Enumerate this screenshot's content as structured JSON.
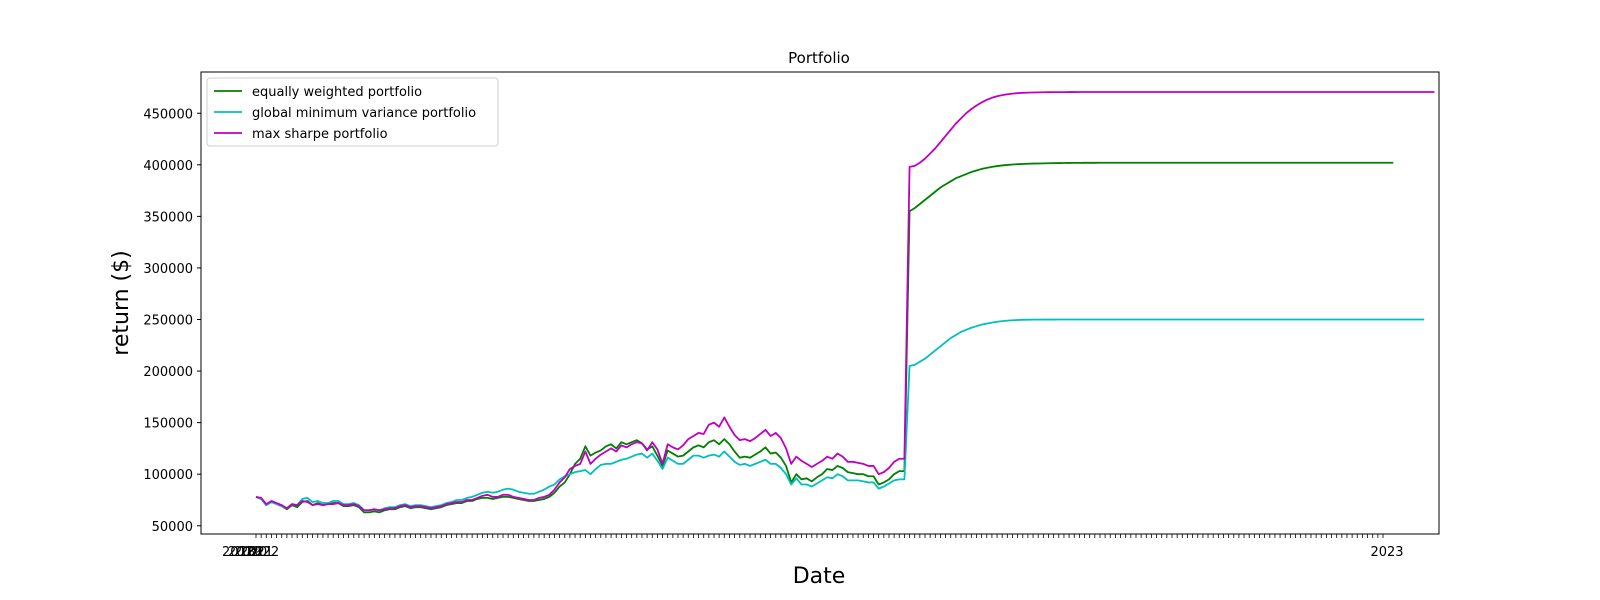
{
  "chart_data": {
    "type": "line",
    "title": "Portfolio",
    "xlabel": "Date",
    "ylabel": "return ($)",
    "ylim": [
      42000,
      490000
    ],
    "yticks": [
      50000,
      100000,
      150000,
      200000,
      250000,
      300000,
      350000,
      400000,
      450000
    ],
    "ytick_labels": [
      "50000",
      "100000",
      "150000",
      "200000",
      "250000",
      "300000",
      "350000",
      "400000",
      "450000"
    ],
    "x_tick_labels": [
      "2018",
      "2019",
      "2020",
      "2021",
      "2022",
      "2023"
    ],
    "grid": false,
    "legend": "top-left",
    "x_count": 220,
    "x_jump": 124,
    "series": [
      {
        "name": "equally weighted portfolio",
        "color": "#008000",
        "values": [
          78000,
          76000,
          70000,
          73000,
          71000,
          69000,
          66000,
          70000,
          68000,
          73000,
          74000,
          70000,
          72000,
          70000,
          71000,
          72000,
          72000,
          69000,
          69000,
          70000,
          68000,
          63000,
          63000,
          64000,
          63000,
          65000,
          66000,
          66000,
          68000,
          69000,
          67000,
          68000,
          68000,
          67000,
          66000,
          67000,
          68000,
          70000,
          71000,
          72000,
          72000,
          74000,
          74000,
          76000,
          77000,
          77000,
          76000,
          77000,
          78000,
          78000,
          77000,
          76000,
          75000,
          74000,
          74000,
          75000,
          76000,
          78000,
          82000,
          88000,
          92000,
          100000,
          110000,
          115000,
          127000,
          118000,
          121000,
          123000,
          127000,
          129000,
          125000,
          131000,
          129000,
          131000,
          133000,
          130000,
          124000,
          127000,
          118000,
          108000,
          123000,
          120000,
          117000,
          118000,
          122000,
          126000,
          128000,
          126000,
          131000,
          133000,
          129000,
          134000,
          129000,
          122000,
          116000,
          117000,
          116000,
          119000,
          122000,
          126000,
          120000,
          121000,
          116000,
          108000,
          92000,
          100000,
          95000,
          96000,
          93000,
          97000,
          100000,
          105000,
          104000,
          108000,
          106000,
          102000,
          101000,
          100000,
          100000,
          98000,
          98000,
          90000,
          92000,
          95000,
          100000,
          103000,
          103000,
          355000,
          358000,
          362000,
          366000,
          370000,
          374000,
          378000,
          381000,
          384000,
          387000,
          389000,
          391000,
          393000,
          394500,
          396000,
          397000,
          398000,
          398800,
          399400,
          399900,
          400300,
          400600,
          400800,
          401000,
          401200,
          401300,
          401400,
          401500,
          401600,
          401700,
          401750,
          401800,
          401850,
          401900,
          401920,
          401940,
          401960,
          401980,
          402000,
          402000,
          402000,
          402000,
          402000,
          402000,
          402000,
          402000,
          402000,
          402000,
          402000,
          402000,
          402000,
          402000,
          402000,
          402000,
          402000,
          402000,
          402000,
          402000,
          402000,
          402000,
          402000,
          402000,
          402000,
          402000,
          402000,
          402000,
          402000,
          402000,
          402000,
          402000,
          402000,
          402000,
          402000,
          402000,
          402000,
          402000,
          402000,
          402000,
          402000,
          402000,
          402000,
          402000,
          402000,
          402000,
          402000,
          402000,
          402000,
          402000,
          402000,
          402000,
          402000,
          402000,
          402000,
          402000,
          402000
        ]
      },
      {
        "name": "global minimum variance portfolio",
        "color": "#00bfbf",
        "values": [
          78000,
          76000,
          70000,
          73000,
          71000,
          69000,
          67000,
          71000,
          70000,
          76000,
          77000,
          73000,
          74000,
          72000,
          72000,
          74000,
          74000,
          71000,
          71000,
          72000,
          70000,
          65000,
          65000,
          66000,
          65000,
          67000,
          68000,
          68000,
          70000,
          71000,
          69000,
          70000,
          70000,
          69000,
          68000,
          69000,
          70000,
          72000,
          73000,
          75000,
          75000,
          77000,
          78000,
          80000,
          82000,
          83000,
          82000,
          83000,
          85000,
          86000,
          85000,
          83000,
          82000,
          81000,
          81000,
          83000,
          85000,
          88000,
          90000,
          95000,
          98000,
          100000,
          102000,
          103000,
          104000,
          100000,
          105000,
          109000,
          110000,
          110000,
          112000,
          114000,
          115000,
          117000,
          119000,
          120000,
          116000,
          120000,
          113000,
          105000,
          116000,
          113000,
          110000,
          110000,
          114000,
          118000,
          118000,
          116000,
          118000,
          119000,
          117000,
          122000,
          117000,
          112000,
          109000,
          110000,
          108000,
          110000,
          112000,
          114000,
          110000,
          110000,
          106000,
          100000,
          90000,
          96000,
          90000,
          90000,
          88000,
          91000,
          94000,
          97000,
          96000,
          100000,
          98000,
          94000,
          94000,
          94000,
          93000,
          92000,
          92000,
          86000,
          88000,
          91000,
          94000,
          95000,
          95000,
          205000,
          206000,
          209000,
          212000,
          216000,
          220000,
          224000,
          228000,
          232000,
          235000,
          238000,
          240000,
          242000,
          243500,
          245000,
          246000,
          247000,
          247800,
          248400,
          248900,
          249300,
          249500,
          249700,
          249800,
          249850,
          249900,
          249920,
          249940,
          249960,
          249980,
          250000,
          250000,
          250000,
          250000,
          250000,
          250000,
          250000,
          250000,
          250000,
          250000,
          250000,
          250000,
          250000,
          250000,
          250000,
          250000,
          250000,
          250000,
          250000,
          250000,
          250000,
          250000,
          250000,
          250000,
          250000,
          250000,
          250000,
          250000,
          250000,
          250000,
          250000,
          250000,
          250000,
          250000,
          250000,
          250000,
          250000,
          250000,
          250000,
          250000,
          250000,
          250000,
          250000,
          250000,
          250000,
          250000,
          250000,
          250000,
          250000,
          250000,
          250000,
          250000,
          250000,
          250000,
          250000,
          250000,
          250000,
          250000,
          250000,
          250000,
          250000,
          250000,
          250000,
          250000,
          250000,
          250000,
          250000,
          250000,
          250000,
          250000,
          250000
        ]
      },
      {
        "name": "max sharpe portfolio",
        "color": "#bf00bf",
        "values": [
          78000,
          77000,
          71000,
          74000,
          72000,
          70000,
          67000,
          71000,
          70000,
          74000,
          73000,
          70000,
          71000,
          70000,
          71000,
          71000,
          72000,
          70000,
          70000,
          71000,
          69000,
          65000,
          65000,
          66000,
          65000,
          66000,
          67000,
          67000,
          69000,
          70000,
          68000,
          69000,
          69000,
          68000,
          67000,
          68000,
          69000,
          71000,
          72000,
          73000,
          73000,
          75000,
          75000,
          77000,
          79000,
          80000,
          78000,
          78000,
          80000,
          80000,
          78000,
          77000,
          76000,
          75000,
          75000,
          77000,
          78000,
          80000,
          85000,
          92000,
          97000,
          105000,
          108000,
          110000,
          122000,
          110000,
          115000,
          119000,
          122000,
          125000,
          122000,
          128000,
          126000,
          129000,
          131000,
          130000,
          123000,
          131000,
          124000,
          110000,
          129000,
          126000,
          124000,
          128000,
          134000,
          137000,
          140000,
          139000,
          148000,
          150000,
          146000,
          155000,
          146000,
          138000,
          133000,
          134000,
          132000,
          135000,
          139000,
          143000,
          137000,
          140000,
          135000,
          125000,
          110000,
          117000,
          113000,
          110000,
          107000,
          110000,
          113000,
          117000,
          115000,
          120000,
          117000,
          112000,
          112000,
          111000,
          110000,
          108000,
          108000,
          100000,
          102000,
          106000,
          112000,
          115000,
          115000,
          398000,
          399000,
          402000,
          406000,
          411000,
          416000,
          422000,
          428000,
          434000,
          440000,
          445000,
          450000,
          454000,
          457500,
          460500,
          463000,
          465000,
          466500,
          467600,
          468400,
          469000,
          469500,
          469800,
          470000,
          470150,
          470250,
          470350,
          470400,
          470450,
          470500,
          470520,
          470540,
          470560,
          470580,
          470600,
          470600,
          470600,
          470600,
          470600,
          470600,
          470600,
          470600,
          470600,
          470600,
          470600,
          470600,
          470600,
          470600,
          470600,
          470600,
          470600,
          470600,
          470600,
          470600,
          470600,
          470600,
          470600,
          470600,
          470600,
          470600,
          470600,
          470600,
          470600,
          470600,
          470600,
          470600,
          470600,
          470600,
          470600,
          470600,
          470600,
          470600,
          470600,
          470600,
          470600,
          470600,
          470600,
          470600,
          470600,
          470600,
          470600,
          470600,
          470600,
          470600,
          470600,
          470600,
          470600,
          470600,
          470600,
          470600,
          470600,
          470600,
          470600,
          470600,
          470600,
          470600,
          470600,
          470600,
          470600,
          470600,
          470600,
          470600,
          470600
        ]
      }
    ]
  }
}
